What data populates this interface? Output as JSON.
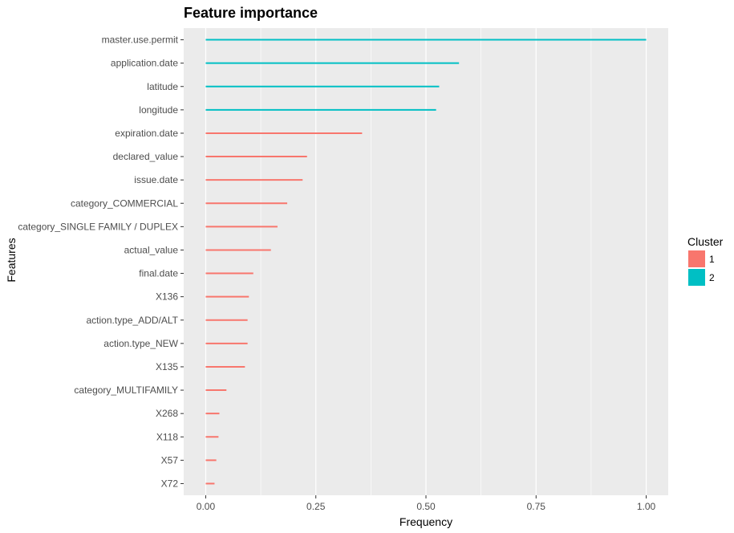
{
  "chart_data": {
    "type": "bar",
    "orientation": "horizontal",
    "title": "Feature importance",
    "xlabel": "Frequency",
    "ylabel": "Features",
    "xlim": [
      0,
      1.05
    ],
    "x_ticks": [
      0.0,
      0.25,
      0.5,
      0.75,
      1.0
    ],
    "x_tick_labels": [
      "0.00",
      "0.25",
      "0.50",
      "0.75",
      "1.00"
    ],
    "grid": true,
    "legend": {
      "title": "Cluster",
      "placement": "right",
      "entries": [
        {
          "label": "1",
          "color": "#F8766D"
        },
        {
          "label": "2",
          "color": "#00BFC4"
        }
      ]
    },
    "categories": [
      "master.use.permit",
      "application.date",
      "latitude",
      "longitude",
      "expiration.date",
      "declared_value",
      "issue.date",
      "category_COMMERCIAL",
      "category_SINGLE FAMILY / DUPLEX",
      "actual_value",
      "final.date",
      "X136",
      "action.type_ADD/ALT",
      "action.type_NEW",
      "X135",
      "category_MULTIFAMILY",
      "X268",
      "X118",
      "X57",
      "X72"
    ],
    "values": [
      1.0,
      0.575,
      0.53,
      0.523,
      0.355,
      0.23,
      0.22,
      0.185,
      0.163,
      0.148,
      0.108,
      0.098,
      0.095,
      0.095,
      0.089,
      0.047,
      0.031,
      0.029,
      0.024,
      0.02
    ],
    "clusters": [
      "2",
      "2",
      "2",
      "2",
      "1",
      "1",
      "1",
      "1",
      "1",
      "1",
      "1",
      "1",
      "1",
      "1",
      "1",
      "1",
      "1",
      "1",
      "1",
      "1"
    ]
  }
}
